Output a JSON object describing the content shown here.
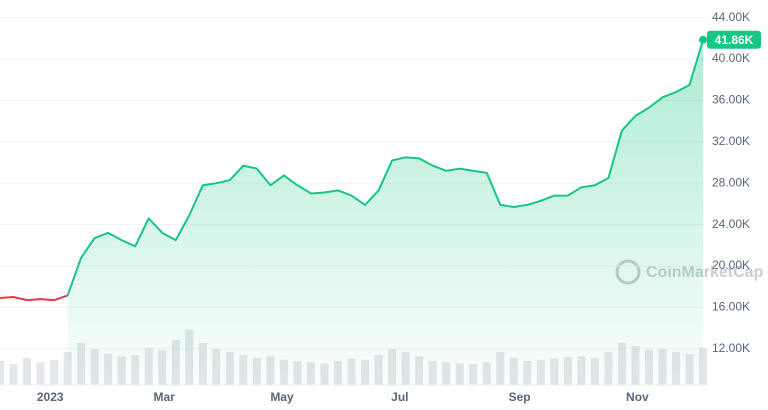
{
  "chart_data": {
    "type": "line",
    "x": [
      -26,
      -19,
      -12,
      -5,
      2,
      9,
      16,
      23,
      30,
      37,
      44,
      51,
      58,
      65,
      72,
      79,
      86,
      93,
      100,
      107,
      114,
      121,
      128,
      135,
      142,
      149,
      156,
      163,
      170,
      177,
      184,
      191,
      198,
      205,
      212,
      219,
      226,
      233,
      240,
      247,
      254,
      261,
      268,
      275,
      282,
      289,
      296,
      303,
      310,
      317,
      324,
      331,
      338
    ],
    "xlim": [
      -26,
      339
    ],
    "xticks": [
      {
        "value": 0,
        "label": "2023"
      },
      {
        "value": 59,
        "label": "Mar"
      },
      {
        "value": 120,
        "label": "May"
      },
      {
        "value": 181,
        "label": "Jul"
      },
      {
        "value": 243,
        "label": "Sep"
      },
      {
        "value": 304,
        "label": "Nov"
      }
    ],
    "ylim": [
      8500,
      45700
    ],
    "yticks": [
      {
        "value": 12000,
        "label": "12.00K"
      },
      {
        "value": 16000,
        "label": "16.00K"
      },
      {
        "value": 20000,
        "label": "20.00K"
      },
      {
        "value": 24000,
        "label": "24.00K"
      },
      {
        "value": 28000,
        "label": "28.00K"
      },
      {
        "value": 32000,
        "label": "32.00K"
      },
      {
        "value": 36000,
        "label": "36.00K"
      },
      {
        "value": 40000,
        "label": "40.00K"
      },
      {
        "value": 44000,
        "label": "44.00K"
      }
    ],
    "grid": true,
    "series": [
      {
        "color": "#ea3943",
        "values": [
          16900,
          17000,
          16700,
          16800,
          16700,
          17150,
          null,
          null,
          null,
          null,
          null,
          null,
          null,
          null,
          null,
          null,
          null,
          null,
          null,
          null,
          null,
          null,
          null,
          null,
          null,
          null,
          null,
          null,
          null,
          null,
          null,
          null,
          null,
          null,
          null,
          null,
          null,
          null,
          null,
          null,
          null,
          null,
          null,
          null,
          null,
          null,
          null,
          null,
          null,
          null,
          null,
          null,
          null
        ]
      },
      {
        "color": "#16c784",
        "values": [
          null,
          null,
          null,
          null,
          null,
          17150,
          20800,
          22700,
          23200,
          22500,
          21900,
          24600,
          23200,
          22500,
          24900,
          27800,
          28000,
          28300,
          29700,
          29400,
          27800,
          28750,
          27800,
          27000,
          27100,
          27300,
          26800,
          25900,
          27300,
          30200,
          30500,
          30400,
          29700,
          29200,
          29400,
          29200,
          29000,
          25900,
          25700,
          25900,
          26300,
          26800,
          26800,
          27600,
          27800,
          28500,
          33100,
          34500,
          35300,
          36300,
          36800,
          37500,
          41860
        ],
        "value_labels": [
          null,
          null,
          null,
          null,
          null,
          null,
          null,
          null,
          null,
          null,
          null,
          null,
          null,
          null,
          null,
          null,
          null,
          null,
          null,
          null,
          null,
          null,
          null,
          null,
          null,
          null,
          null,
          null,
          null,
          null,
          null,
          null,
          null,
          null,
          null,
          null,
          null,
          null,
          null,
          null,
          null,
          null,
          null,
          null,
          null,
          null,
          null,
          null,
          null,
          null,
          null,
          null,
          "41.86K"
        ]
      }
    ],
    "volume": {
      "color": "#e3e6ea",
      "values": [
        40,
        35,
        45,
        38,
        42,
        55,
        70,
        60,
        52,
        48,
        50,
        62,
        58,
        75,
        92,
        70,
        60,
        55,
        50,
        45,
        48,
        42,
        40,
        38,
        36,
        40,
        44,
        42,
        50,
        60,
        55,
        48,
        40,
        38,
        36,
        35,
        38,
        55,
        45,
        40,
        42,
        44,
        46,
        48,
        45,
        55,
        70,
        65,
        58,
        60,
        55,
        52,
        62
      ]
    },
    "y2lim": [
      0,
      100
    ],
    "watermark": "CoinMarketCap"
  }
}
